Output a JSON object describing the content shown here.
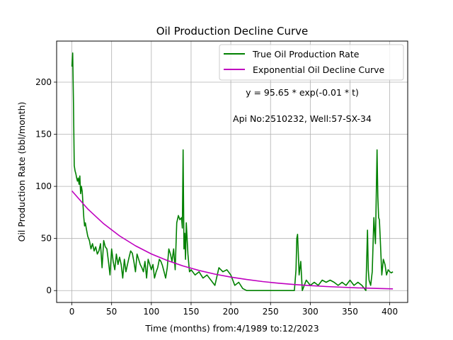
{
  "chart_data": {
    "type": "line",
    "title": "Oil Production Decline Curve",
    "xlabel": "Time (months) from:4/1989 to:12/2023",
    "ylabel": "Oil Production Rate (bbl/month)",
    "xlim": [
      -19.2,
      422.6
    ],
    "ylim": [
      -11.4,
      239.4
    ],
    "x_ticks": [
      0,
      50,
      100,
      150,
      200,
      250,
      300,
      350,
      400
    ],
    "y_ticks": [
      0,
      50,
      100,
      150,
      200
    ],
    "grid": true,
    "legend_position": "top-right",
    "annotations": [
      {
        "text": "y = 95.65 * exp(-0.01 * t)",
        "x": 293,
        "y": 191
      },
      {
        "text": "Api No:2510232, Well:57-SX-34",
        "x": 293,
        "y": 166
      }
    ],
    "series": [
      {
        "name": "True Oil Production Rate",
        "color": "#008000",
        "x": [
          0,
          1,
          2,
          3,
          4,
          5,
          6,
          7,
          8,
          9,
          10,
          11,
          12,
          13,
          14,
          15,
          16,
          17,
          18,
          20,
          22,
          24,
          26,
          28,
          30,
          32,
          34,
          36,
          38,
          40,
          42,
          44,
          46,
          48,
          50,
          52,
          54,
          56,
          58,
          60,
          62,
          64,
          66,
          68,
          70,
          72,
          74,
          76,
          78,
          80,
          82,
          84,
          86,
          88,
          90,
          92,
          94,
          96,
          98,
          100,
          102,
          104,
          106,
          108,
          110,
          112,
          114,
          116,
          118,
          120,
          122,
          124,
          126,
          128,
          130,
          132,
          134,
          136,
          138,
          139,
          140,
          141,
          142,
          143,
          144,
          146,
          148,
          150,
          155,
          160,
          165,
          170,
          175,
          180,
          185,
          190,
          195,
          200,
          205,
          210,
          215,
          220,
          225,
          230,
          240,
          250,
          260,
          270,
          280,
          282,
          283,
          284,
          285,
          286,
          288,
          290,
          295,
          300,
          305,
          310,
          315,
          320,
          325,
          330,
          335,
          340,
          345,
          350,
          355,
          360,
          365,
          370,
          372,
          373,
          374,
          376,
          378,
          380,
          382,
          384,
          385,
          386,
          387,
          388,
          390,
          392,
          394,
          396,
          398,
          400,
          402,
          404
        ],
        "y": [
          215,
          228,
          180,
          120,
          115,
          112,
          108,
          105,
          108,
          102,
          110,
          93,
          100,
          95,
          82,
          70,
          62,
          65,
          60,
          52,
          48,
          40,
          45,
          38,
          42,
          35,
          38,
          45,
          22,
          48,
          42,
          40,
          28,
          15,
          40,
          28,
          20,
          35,
          25,
          32,
          25,
          12,
          30,
          18,
          25,
          32,
          38,
          36,
          28,
          18,
          35,
          30,
          25,
          22,
          18,
          28,
          12,
          30,
          25,
          20,
          25,
          12,
          18,
          22,
          30,
          28,
          24,
          18,
          12,
          22,
          40,
          35,
          28,
          40,
          20,
          65,
          72,
          68,
          70,
          60,
          135,
          40,
          55,
          30,
          65,
          35,
          18,
          20,
          15,
          18,
          12,
          15,
          10,
          5,
          22,
          18,
          20,
          15,
          5,
          8,
          2,
          0,
          0,
          0,
          0,
          0,
          0,
          0,
          0,
          20,
          50,
          54,
          35,
          15,
          28,
          0,
          10,
          5,
          8,
          5,
          10,
          8,
          10,
          8,
          5,
          8,
          5,
          10,
          5,
          8,
          5,
          0,
          58,
          20,
          10,
          5,
          18,
          70,
          45,
          135,
          90,
          70,
          68,
          50,
          15,
          30,
          25,
          15,
          20,
          18,
          17,
          18
        ]
      },
      {
        "name": "Exponential Oil Decline Curve",
        "color": "#bf00bf",
        "x": [
          0,
          20,
          40,
          60,
          80,
          100,
          120,
          140,
          160,
          180,
          200,
          220,
          240,
          260,
          280,
          300,
          320,
          340,
          360,
          380,
          404
        ],
        "y": [
          95.65,
          78.31,
          64.12,
          52.5,
          42.98,
          35.19,
          28.81,
          23.59,
          19.31,
          15.81,
          12.95,
          10.6,
          8.68,
          7.11,
          5.82,
          4.76,
          3.9,
          3.19,
          2.62,
          2.14,
          1.68
        ]
      }
    ]
  }
}
